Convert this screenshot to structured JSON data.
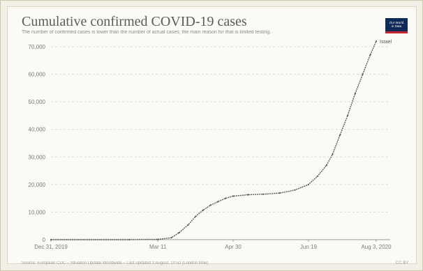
{
  "header": {
    "title": "Cumulative confirmed COVID-19 cases",
    "subtitle": "The number of confirmed cases is lower than the number of actual cases; the main reason for that is limited testing."
  },
  "logo": {
    "text": "Our World\nin Data",
    "background": "#0f2a57",
    "accent": "#c6242f"
  },
  "footer": {
    "source": "Source: European CDC – Situation Update Worldwide – Last updated 3 August, 10:52 (London time)",
    "license": "CC BY"
  },
  "chart_data": {
    "type": "line",
    "title": "Cumulative confirmed COVID-19 cases",
    "xlabel": "",
    "ylabel": "",
    "x_ticks": [
      "Dec 31, 2019",
      "Mar 11",
      "Apr 30",
      "Jun 19",
      "Aug 3, 2020"
    ],
    "y_ticks": [
      "0",
      "10,000",
      "20,000",
      "30,000",
      "40,000",
      "50,000",
      "60,000",
      "70,000"
    ],
    "ylim": [
      0,
      70000
    ],
    "xlim": [
      "2019-12-31",
      "2020-08-03"
    ],
    "grid": "horizontal dashed",
    "line_color": "#5a5a5a",
    "series": [
      {
        "name": "Israel",
        "x": [
          "2019-12-31",
          "2020-02-21",
          "2020-03-11",
          "2020-03-20",
          "2020-03-25",
          "2020-03-31",
          "2020-04-05",
          "2020-04-10",
          "2020-04-15",
          "2020-04-20",
          "2020-04-25",
          "2020-04-30",
          "2020-05-10",
          "2020-05-20",
          "2020-05-31",
          "2020-06-10",
          "2020-06-19",
          "2020-06-25",
          "2020-07-01",
          "2020-07-05",
          "2020-07-10",
          "2020-07-15",
          "2020-07-20",
          "2020-07-25",
          "2020-07-30",
          "2020-08-03"
        ],
        "y": [
          0,
          0,
          100,
          700,
          2500,
          5300,
          8400,
          10700,
          12500,
          13800,
          15000,
          15800,
          16300,
          16500,
          16900,
          18000,
          20000,
          23000,
          27000,
          31000,
          38000,
          45000,
          53000,
          60000,
          67000,
          72000
        ]
      }
    ]
  }
}
